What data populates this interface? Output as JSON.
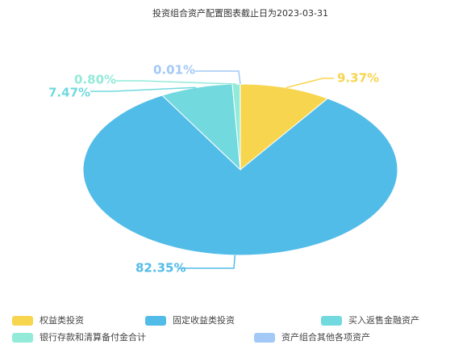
{
  "chart_data": {
    "type": "pie",
    "title": "投资组合资产配置图表截止日为2023-03-31",
    "categories": [
      "权益类投资",
      "固定收益类投资",
      "买入返售金融资产",
      "银行存款和清算备付金合计",
      "资产组合其他各项资产"
    ],
    "values": [
      9.37,
      82.35,
      7.47,
      0.8,
      0.01
    ],
    "value_labels": [
      "9.37%",
      "82.35%",
      "7.47%",
      "0.80%",
      "0.01%"
    ],
    "colors": [
      "#f7d54e",
      "#52bce8",
      "#72d9df",
      "#94ead9",
      "#a3c9f7"
    ],
    "legend": "bottom"
  }
}
